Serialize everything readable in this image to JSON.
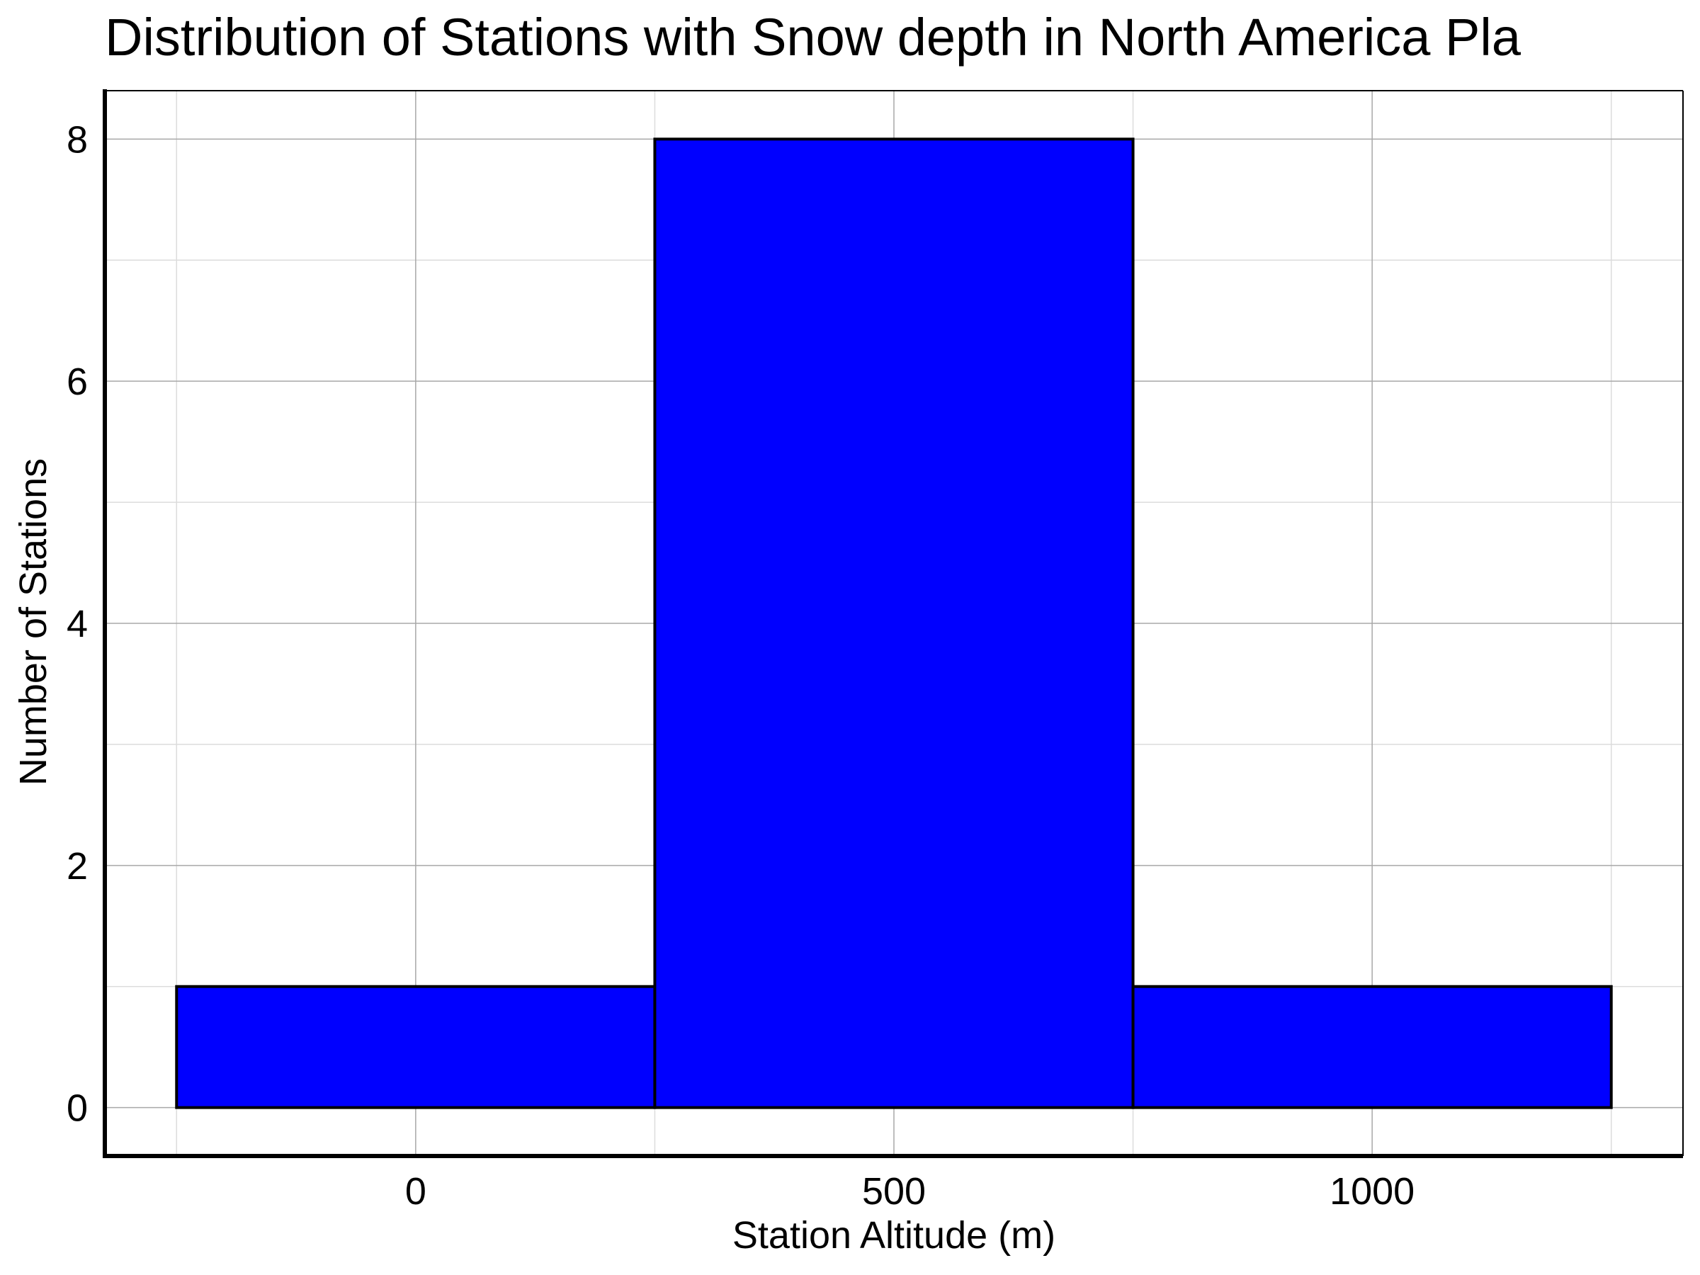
{
  "chart_data": {
    "type": "bar",
    "title": "Distribution of Stations with Snow depth in North America Pla",
    "xlabel": "Station Altitude (m)",
    "ylabel": "Number of Stations",
    "bins": [
      {
        "x_start": -250,
        "x_end": 250,
        "count": 1
      },
      {
        "x_start": 250,
        "x_end": 750,
        "count": 8
      },
      {
        "x_start": 750,
        "x_end": 1250,
        "count": 1
      }
    ],
    "xlim": [
      -325,
      1325
    ],
    "ylim": [
      -0.4,
      8.4
    ],
    "x_ticks": [
      0,
      500,
      1000
    ],
    "x_tick_labels": [
      "0",
      "500",
      "1000"
    ],
    "x_minor_grid": [
      -250,
      250,
      750,
      1250
    ],
    "y_ticks": [
      0,
      2,
      4,
      6,
      8
    ],
    "y_tick_labels": [
      "0",
      "2",
      "4",
      "6",
      "8"
    ],
    "y_minor_grid": [
      1,
      3,
      5,
      7
    ],
    "grid": true,
    "bar_color": "#0000ff",
    "edge_color": "#000000"
  }
}
